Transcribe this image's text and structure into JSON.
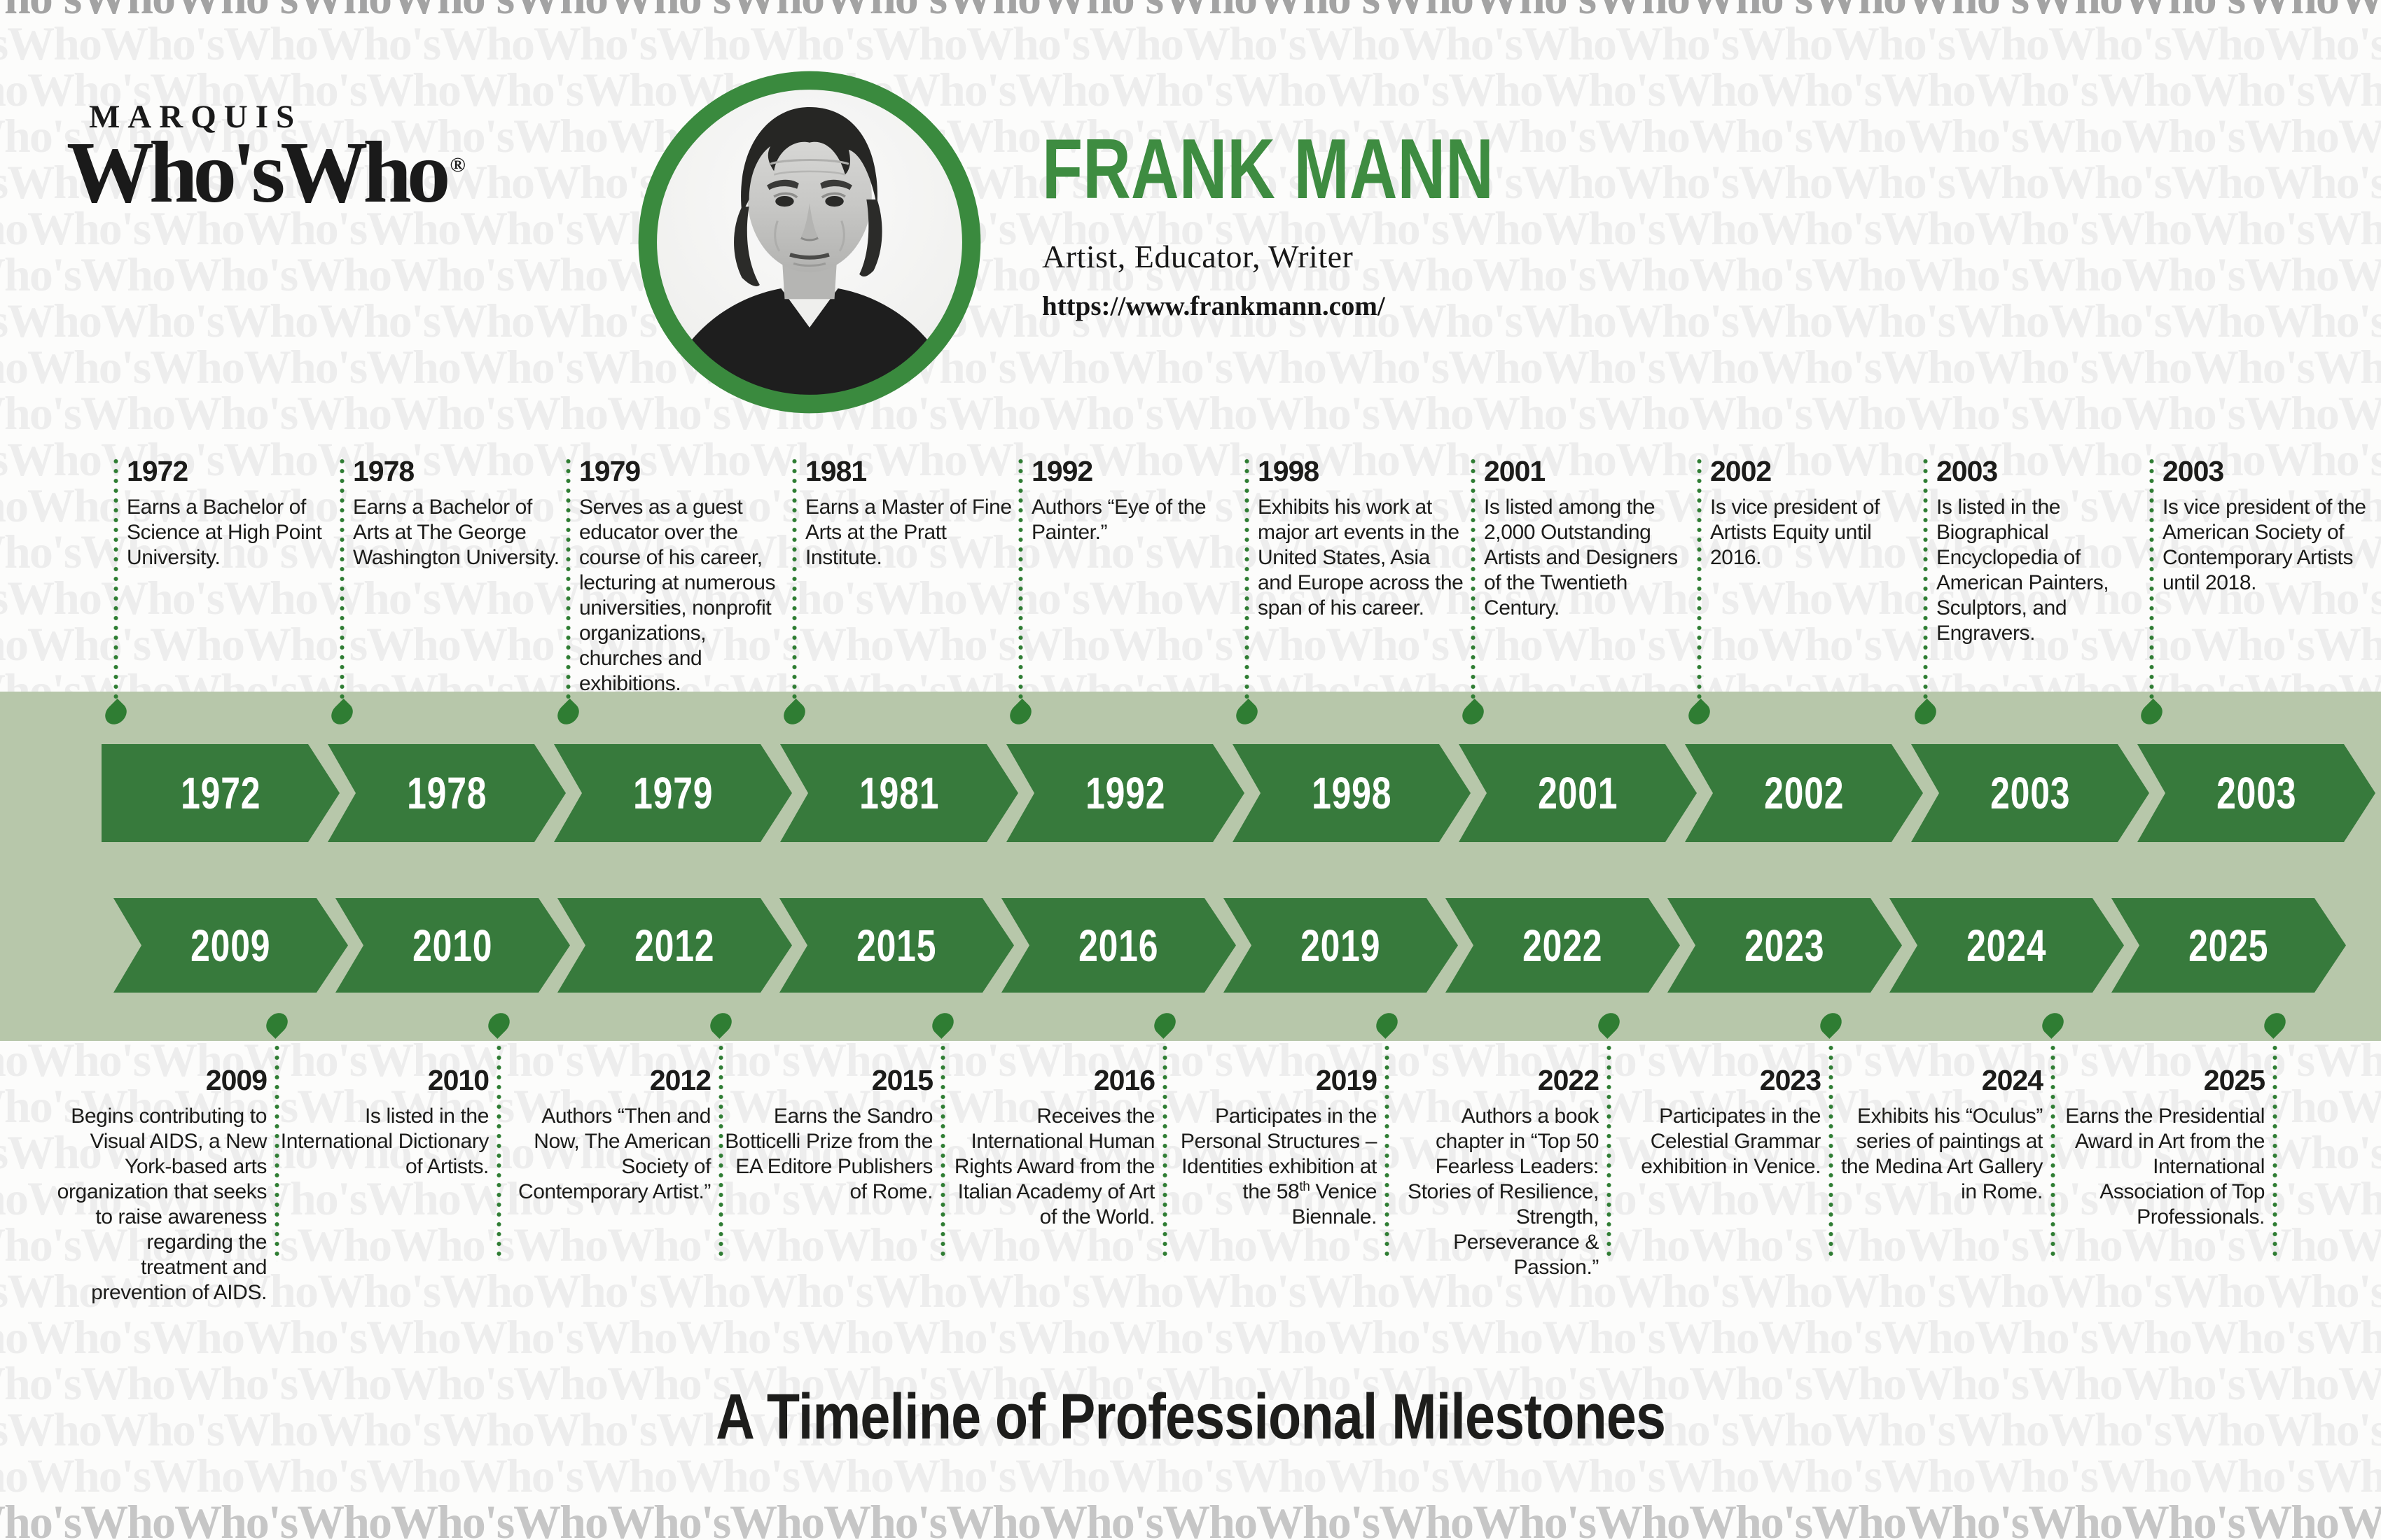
{
  "brand": {
    "pretitle": "MARQUIS",
    "title": "Who'sWho",
    "registered_mark": "®"
  },
  "profile": {
    "name": "FRANK MANN",
    "roles": "Artist, Educator, Writer",
    "url": "https://www.frankmann.com/",
    "photo": "black-and-white portrait of Frank Mann in green circular ring"
  },
  "footer": {
    "title": "A Timeline of Professional Milestones"
  },
  "watermark": {
    "text": "Who'sWho"
  },
  "colors": {
    "green_arrow": "#377a3c",
    "green_title": "#3e8c41",
    "green_dot": "#2f7d33",
    "green_ring": "#3a8a3e",
    "band": "#b7c7aa",
    "ink": "#1f1f1d",
    "watermark_light": "#ededed",
    "watermark_dark": "#a3a3a3"
  },
  "timeline": {
    "top": [
      {
        "year": "1972",
        "text": "Earns a Bachelor of Science at High Point University."
      },
      {
        "year": "1978",
        "text": "Earns a Bachelor of Arts at The George Washington University."
      },
      {
        "year": "1979",
        "text": "Serves as a guest educator over the course of his career, lecturing at numerous universities, nonprofit organizations, churches and exhibitions."
      },
      {
        "year": "1981",
        "text": "Earns a Master of Fine Arts at the Pratt Institute."
      },
      {
        "year": "1992",
        "text": "Authors “Eye of the Painter.”"
      },
      {
        "year": "1998",
        "text": "Exhibits his work at major art events in the United States, Asia and Europe across the span of his career."
      },
      {
        "year": "2001",
        "text": "Is listed among the 2,000 Outstanding Artists and Designers of the Twentieth Century."
      },
      {
        "year": "2002",
        "text": "Is vice president of Artists Equity until 2016."
      },
      {
        "year": "2003",
        "text": "Is listed in the Biographical Encyclopedia of American Painters, Sculptors, and Engravers."
      },
      {
        "year": "2003",
        "text": "Is vice president of the American Society of Contemporary Artists until 2018."
      }
    ],
    "bottom": [
      {
        "year": "2009",
        "text": "Begins contributing to Visual AIDS, a New York-based arts organization that seeks to raise awareness regarding the treatment and prevention of AIDS."
      },
      {
        "year": "2010",
        "text": "Is listed in the International Dictionary of Artists."
      },
      {
        "year": "2012",
        "text": "Authors “Then and Now, The American Society of Contemporary Artist.”"
      },
      {
        "year": "2015",
        "text": "Earns the Sandro Botticelli Prize from the EA Editore Publishers of Rome."
      },
      {
        "year": "2016",
        "text": "Receives the International Human Rights Award from the Italian Academy of Art of the World."
      },
      {
        "year": "2019",
        "text": "Participates in the Personal Structures – Identities exhibition at the 58th Venice Biennale."
      },
      {
        "year": "2022",
        "text": "Authors a book chapter in “Top 50 Fearless Leaders: Stories of Resilience, Strength, Perseverance & Passion.”"
      },
      {
        "year": "2023",
        "text": "Participates in the Celestial Grammar exhibition in Venice."
      },
      {
        "year": "2024",
        "text": "Exhibits his “Oculus” series of paintings at the Medina Art Gallery in Rome."
      },
      {
        "year": "2025",
        "text": "Earns the Presidential Award in Art from the International Association of Top Professionals."
      }
    ]
  }
}
